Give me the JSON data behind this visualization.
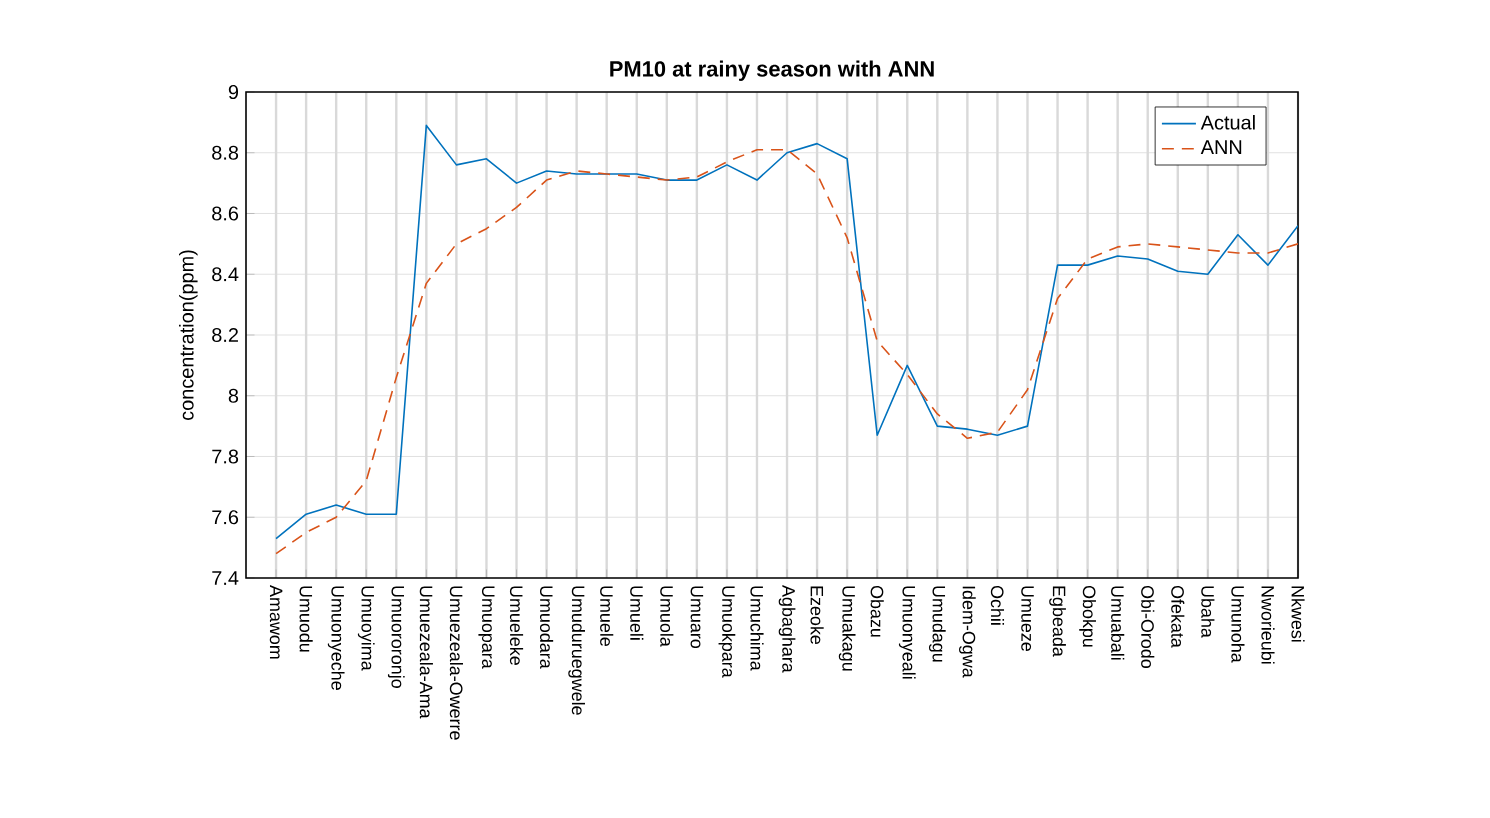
{
  "chart_data": {
    "type": "line",
    "title": "PM10 at rainy season with ANN",
    "ylabel": "concentration(ppm)",
    "categories": [
      "Amawom",
      "Umuodu",
      "Umuonyeche",
      "Umuoyima",
      "Umuororonjo",
      "Umuezeala-Ama",
      "Umuezeala-Owerre",
      "Umuopara",
      "Umueleke",
      "Umuodara",
      "Umuduruegwele",
      "Umuele",
      "Umueli",
      "Umuola",
      "Umuaro",
      "Umuokpara",
      "Umuchima",
      "Agbaghara",
      "Ezeoke",
      "Umuakagu",
      "Obazu",
      "Umuonyeali",
      "Umudagu",
      "Idem-Ogwa",
      "Ochii",
      "Umueze",
      "Egbeada",
      "Obokpu",
      "Umuabali",
      "Obi-Orodo",
      "Ofekata",
      "Ubaha",
      "Umunoha",
      "Nworieubi",
      "Nkwesi"
    ],
    "series": [
      {
        "name": "Actual",
        "color": "#0072bd",
        "line_style": "solid",
        "values": [
          7.53,
          7.61,
          7.64,
          7.61,
          7.61,
          8.89,
          8.76,
          8.78,
          8.7,
          8.74,
          8.73,
          8.73,
          8.73,
          8.71,
          8.71,
          8.76,
          8.71,
          8.8,
          8.83,
          8.78,
          7.87,
          8.1,
          7.9,
          7.89,
          7.87,
          7.9,
          8.43,
          8.43,
          8.46,
          8.45,
          8.41,
          8.4,
          8.53,
          8.43,
          8.56
        ]
      },
      {
        "name": "ANN",
        "color": "#d95319",
        "line_style": "dashed",
        "values": [
          7.48,
          7.55,
          7.6,
          7.72,
          8.06,
          8.37,
          8.5,
          8.55,
          8.62,
          8.71,
          8.74,
          8.73,
          8.72,
          8.71,
          8.72,
          8.77,
          8.81,
          8.81,
          8.73,
          8.52,
          8.18,
          8.07,
          7.94,
          7.86,
          7.88,
          8.02,
          8.32,
          8.45,
          8.49,
          8.5,
          8.49,
          8.48,
          8.47,
          8.47,
          8.5
        ]
      }
    ],
    "ylim": [
      7.4,
      9
    ],
    "yticks": [
      7.4,
      7.6,
      7.8,
      8,
      8.2,
      8.4,
      8.6,
      8.8,
      9
    ],
    "grid": true,
    "legend": "top right"
  }
}
